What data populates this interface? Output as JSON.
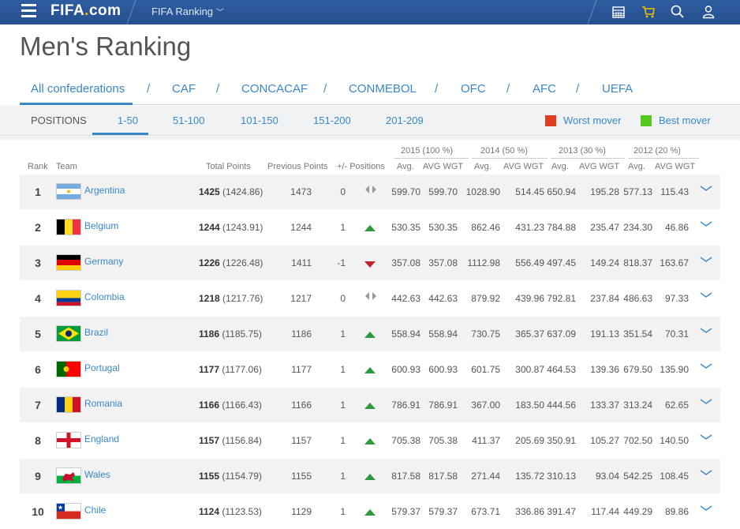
{
  "header": {
    "logo_main": "FIFA",
    "logo_dot": ".",
    "logo_suffix": "com",
    "section": "FIFA Ranking",
    "section_chevron": "﹀",
    "icons": [
      "menu-icon",
      "calendar-icon",
      "cart-icon",
      "search-icon",
      "user-icon"
    ]
  },
  "page_title": "Men's Ranking",
  "confederations": [
    "All confederations",
    "CAF",
    "CONCACAF",
    "CONMEBOL",
    "OFC",
    "AFC",
    "UEFA"
  ],
  "separator": "/",
  "positions": {
    "label": "POSITIONS",
    "tabs": [
      "1-50",
      "51-100",
      "101-150",
      "151-200",
      "201-209"
    ],
    "active": "1-50"
  },
  "legend": {
    "worst": {
      "label": "Worst mover",
      "color": "#e03c1f"
    },
    "best": {
      "label": "Best mover",
      "color": "#55c81e"
    }
  },
  "table": {
    "year_headers": [
      "2015 (100 %)",
      "2014 (50 %)",
      "2013 (30 %)",
      "2012 (20 %)"
    ],
    "columns": {
      "rank": "Rank",
      "team": "Team",
      "total": "Total Points",
      "previous": "Previous Points",
      "change": "+/- Positions",
      "avg": "Avg.",
      "avg_wgt": "AVG WGT"
    },
    "rows": [
      {
        "rank": "1",
        "team": "Argentina",
        "flag": "argentina",
        "pts": "1425",
        "pts_exact": "(1424.86)",
        "prev": "1473",
        "chg": "0",
        "move": "same",
        "y2015": [
          "599.70",
          "599.70"
        ],
        "y2014": [
          "1028.90",
          "514.45"
        ],
        "y2013": [
          "650.94",
          "195.28"
        ],
        "y2012": [
          "577.13",
          "115.43"
        ]
      },
      {
        "rank": "2",
        "team": "Belgium",
        "flag": "belgium",
        "pts": "1244",
        "pts_exact": "(1243.91)",
        "prev": "1244",
        "chg": "1",
        "move": "up",
        "y2015": [
          "530.35",
          "530.35"
        ],
        "y2014": [
          "862.46",
          "431.23"
        ],
        "y2013": [
          "784.88",
          "235.47"
        ],
        "y2012": [
          "234.30",
          "46.86"
        ]
      },
      {
        "rank": "3",
        "team": "Germany",
        "flag": "germany",
        "pts": "1226",
        "pts_exact": "(1226.48)",
        "prev": "1411",
        "chg": "-1",
        "move": "down",
        "y2015": [
          "357.08",
          "357.08"
        ],
        "y2014": [
          "1112.98",
          "556.49"
        ],
        "y2013": [
          "497.45",
          "149.24"
        ],
        "y2012": [
          "818.37",
          "163.67"
        ]
      },
      {
        "rank": "4",
        "team": "Colombia",
        "flag": "colombia",
        "pts": "1218",
        "pts_exact": "(1217.76)",
        "prev": "1217",
        "chg": "0",
        "move": "same",
        "y2015": [
          "442.63",
          "442.63"
        ],
        "y2014": [
          "879.92",
          "439.96"
        ],
        "y2013": [
          "792.81",
          "237.84"
        ],
        "y2012": [
          "486.63",
          "97.33"
        ]
      },
      {
        "rank": "5",
        "team": "Brazil",
        "flag": "brazil",
        "pts": "1186",
        "pts_exact": "(1185.75)",
        "prev": "1186",
        "chg": "1",
        "move": "up",
        "y2015": [
          "558.94",
          "558.94"
        ],
        "y2014": [
          "730.75",
          "365.37"
        ],
        "y2013": [
          "637.09",
          "191.13"
        ],
        "y2012": [
          "351.54",
          "70.31"
        ]
      },
      {
        "rank": "6",
        "team": "Portugal",
        "flag": "portugal",
        "pts": "1177",
        "pts_exact": "(1177.06)",
        "prev": "1177",
        "chg": "1",
        "move": "up",
        "y2015": [
          "600.93",
          "600.93"
        ],
        "y2014": [
          "601.75",
          "300.87"
        ],
        "y2013": [
          "464.53",
          "139.36"
        ],
        "y2012": [
          "679.50",
          "135.90"
        ]
      },
      {
        "rank": "7",
        "team": "Romania",
        "flag": "romania",
        "pts": "1166",
        "pts_exact": "(1166.43)",
        "prev": "1166",
        "chg": "1",
        "move": "up",
        "y2015": [
          "786.91",
          "786.91"
        ],
        "y2014": [
          "367.00",
          "183.50"
        ],
        "y2013": [
          "444.56",
          "133.37"
        ],
        "y2012": [
          "313.24",
          "62.65"
        ]
      },
      {
        "rank": "8",
        "team": "England",
        "flag": "england",
        "pts": "1157",
        "pts_exact": "(1156.84)",
        "prev": "1157",
        "chg": "1",
        "move": "up",
        "y2015": [
          "705.38",
          "705.38"
        ],
        "y2014": [
          "411.37",
          "205.69"
        ],
        "y2013": [
          "350.91",
          "105.27"
        ],
        "y2012": [
          "702.50",
          "140.50"
        ]
      },
      {
        "rank": "9",
        "team": "Wales",
        "flag": "wales",
        "pts": "1155",
        "pts_exact": "(1154.79)",
        "prev": "1155",
        "chg": "1",
        "move": "up",
        "y2015": [
          "817.58",
          "817.58"
        ],
        "y2014": [
          "271.44",
          "135.72"
        ],
        "y2013": [
          "310.13",
          "93.04"
        ],
        "y2012": [
          "542.25",
          "108.45"
        ]
      },
      {
        "rank": "10",
        "team": "Chile",
        "flag": "chile",
        "pts": "1124",
        "pts_exact": "(1123.53)",
        "prev": "1129",
        "chg": "1",
        "move": "up",
        "y2015": [
          "579.37",
          "579.37"
        ],
        "y2014": [
          "673.71",
          "336.86"
        ],
        "y2013": [
          "391.47",
          "117.44"
        ],
        "y2012": [
          "449.29",
          "89.86"
        ]
      }
    ]
  }
}
